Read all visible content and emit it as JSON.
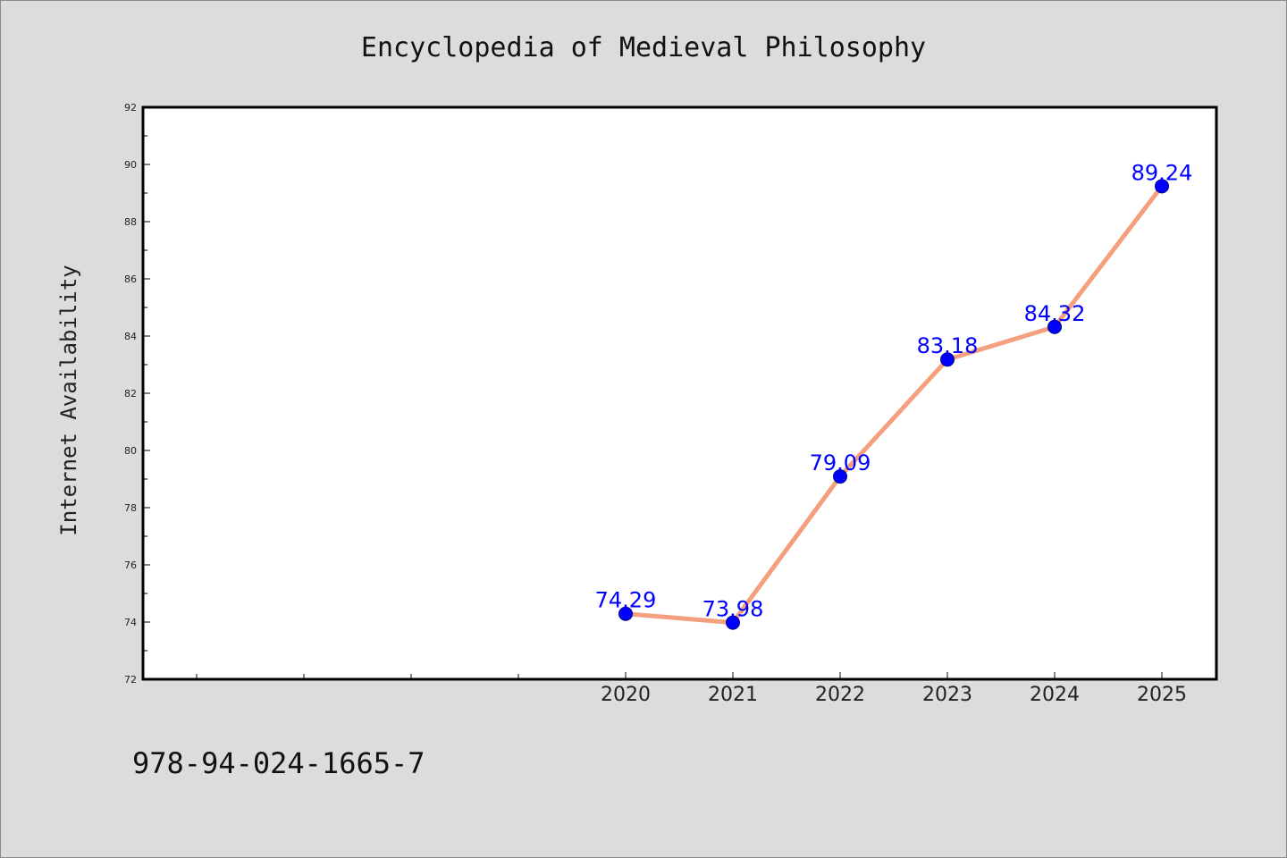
{
  "chart_data": {
    "type": "line",
    "title": "Encyclopedia of Medieval Philosophy",
    "ylabel": "Internet Availability",
    "xlabel": "",
    "x": [
      "2020",
      "2021",
      "2022",
      "2023",
      "2024",
      "2025"
    ],
    "values": [
      74.29,
      73.98,
      79.09,
      83.18,
      84.32,
      89.24
    ],
    "data_labels": [
      "74.29",
      "73.98",
      "79.09",
      "83.18",
      "84.32",
      "89.24"
    ],
    "ylim": [
      72,
      92
    ],
    "yticks": [
      "72",
      "74",
      "76",
      "78",
      "80",
      "82",
      "84",
      "86",
      "88",
      "90",
      "92"
    ],
    "grid": false,
    "legend": "none",
    "colors": {
      "line": "#f4a07e",
      "marker": "#0000ff",
      "label": "#0000ff",
      "plot_bg": "#ffffff",
      "page_bg": "#dcdcdc"
    }
  },
  "footer": {
    "isbn": "978-94-024-1665-7"
  }
}
